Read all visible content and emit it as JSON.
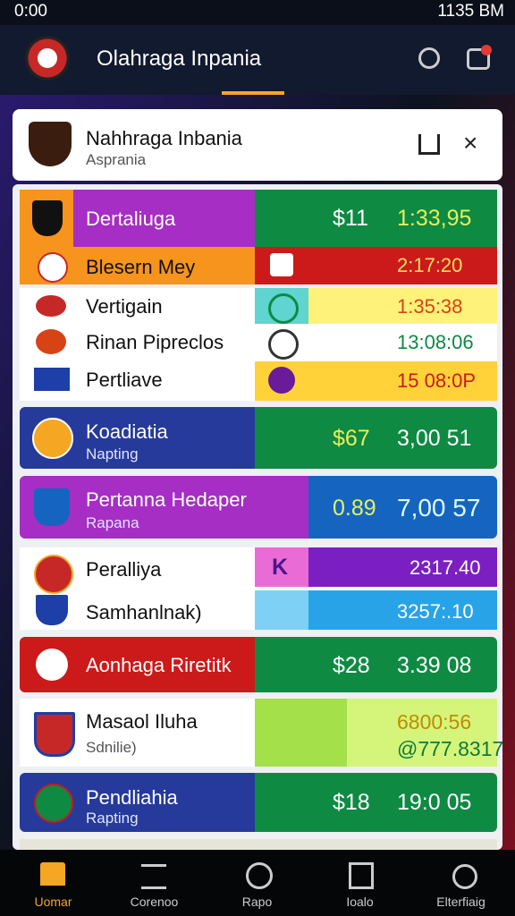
{
  "status_bar": {
    "time": "0:00",
    "clock": "1135 BM"
  },
  "app_bar": {
    "title": "Olahraga Inpania"
  },
  "header": {
    "title": "Nahhraga Inbania",
    "subtitle": "Asprania"
  },
  "rows": [
    {
      "name": "Dertaliuga",
      "price": "$11",
      "time": "1:33,95"
    },
    {
      "name": "Blesern Mey",
      "time": "2:17:20"
    },
    {
      "name": "Vertigain",
      "time": "1:35:38"
    },
    {
      "name": "Rinan Pipreclos",
      "time": "13:08:06"
    },
    {
      "name": "Pertliave",
      "time": "15 08:0P"
    },
    {
      "name": "Koadiatia",
      "sub": "Napting",
      "price": "$67",
      "time": "3,00 51"
    },
    {
      "name": "Pertanna Hedaper",
      "sub": "Rapana",
      "price": "0.89",
      "time": "7,00 57"
    },
    {
      "name": "Peralliya",
      "price": "K",
      "time": "2317.40"
    },
    {
      "name": "Samhanlnak)",
      "time": "3257:.10"
    },
    {
      "name": "Aonhaga Riretitk",
      "price": "$28",
      "time": "3.39 08"
    },
    {
      "name": "Masaol Iluha",
      "sub": "Sdnilie)",
      "time": "6800:56",
      "time2": "@777.8317"
    },
    {
      "name": "Pendliahia",
      "sub": "Rapting",
      "price": "$18",
      "time": "19:0 05"
    }
  ],
  "nav": [
    "Uomar",
    "Corenoo",
    "Rapo",
    "Ioalo",
    "Elterfiaig"
  ]
}
